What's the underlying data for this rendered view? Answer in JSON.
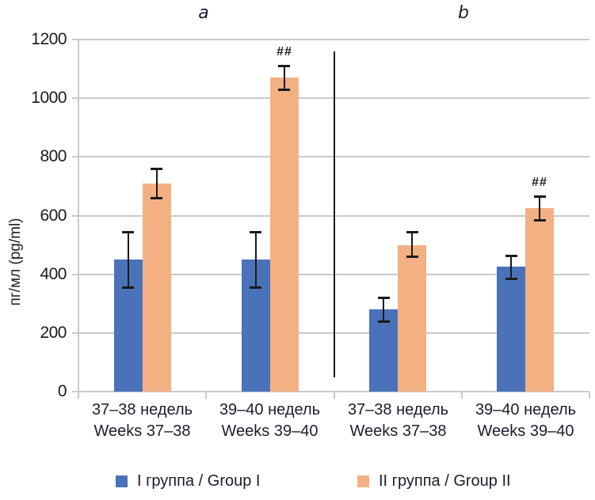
{
  "chart_data": {
    "type": "bar",
    "title": "",
    "xlabel": "",
    "ylabel": "пг/мл (pg/ml)",
    "ylim": [
      0,
      1200
    ],
    "ytick_step": 200,
    "grid": true,
    "legend_position": "bottom",
    "panels": [
      {
        "label": "a",
        "categories": [
          [
            "37–38 недель",
            "Weeks 37–38"
          ],
          [
            "39–40 недель",
            "Weeks 39–40"
          ]
        ]
      },
      {
        "label": "b",
        "categories": [
          [
            "37–38 недель",
            "Weeks 37–38"
          ],
          [
            "39–40 недель",
            "Weeks 39–40"
          ]
        ]
      }
    ],
    "series": [
      {
        "name": "I группа / Group I",
        "color": "#4a72b8",
        "values": [
          450,
          450,
          280,
          425
        ],
        "err_low": [
          355,
          355,
          240,
          385
        ],
        "err_high": [
          545,
          545,
          320,
          465
        ]
      },
      {
        "name": "II группа / Group II",
        "color": "#f3b183",
        "values": [
          710,
          1070,
          500,
          625
        ],
        "err_low": [
          660,
          1030,
          460,
          585
        ],
        "err_high": [
          760,
          1110,
          545,
          665
        ]
      }
    ],
    "annotations": [
      {
        "text": "##",
        "panel": 0,
        "category": 1,
        "series": 1
      },
      {
        "text": "##",
        "panel": 1,
        "category": 1,
        "series": 1
      }
    ]
  }
}
